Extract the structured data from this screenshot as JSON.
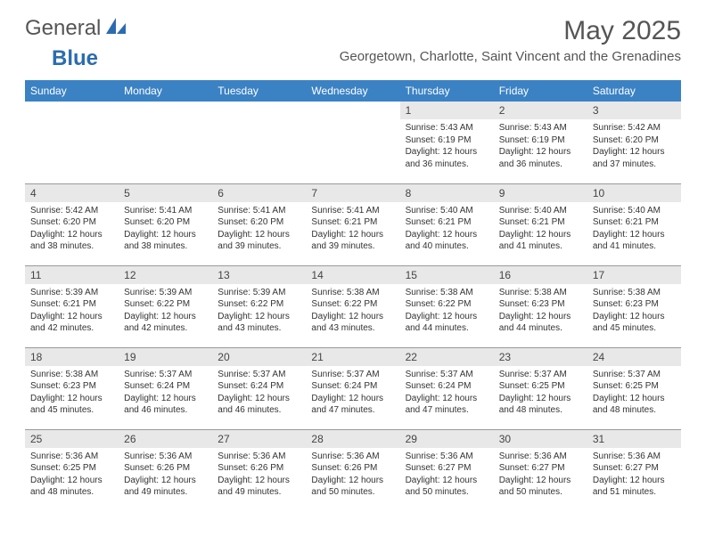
{
  "logo": {
    "text1": "General",
    "text2": "Blue"
  },
  "title": {
    "month": "May 2025",
    "location": "Georgetown, Charlotte, Saint Vincent and the Grenadines"
  },
  "colors": {
    "header_bg": "#3b82c4",
    "header_text": "#ffffff",
    "daynum_bg": "#e8e8e8",
    "border": "#999999",
    "title_text": "#555555",
    "logo_blue": "#2b6cb0"
  },
  "weekdays": [
    "Sunday",
    "Monday",
    "Tuesday",
    "Wednesday",
    "Thursday",
    "Friday",
    "Saturday"
  ],
  "first_weekday_index": 4,
  "days": [
    {
      "n": "1",
      "sunrise": "Sunrise: 5:43 AM",
      "sunset": "Sunset: 6:19 PM",
      "daylight": "Daylight: 12 hours and 36 minutes."
    },
    {
      "n": "2",
      "sunrise": "Sunrise: 5:43 AM",
      "sunset": "Sunset: 6:19 PM",
      "daylight": "Daylight: 12 hours and 36 minutes."
    },
    {
      "n": "3",
      "sunrise": "Sunrise: 5:42 AM",
      "sunset": "Sunset: 6:20 PM",
      "daylight": "Daylight: 12 hours and 37 minutes."
    },
    {
      "n": "4",
      "sunrise": "Sunrise: 5:42 AM",
      "sunset": "Sunset: 6:20 PM",
      "daylight": "Daylight: 12 hours and 38 minutes."
    },
    {
      "n": "5",
      "sunrise": "Sunrise: 5:41 AM",
      "sunset": "Sunset: 6:20 PM",
      "daylight": "Daylight: 12 hours and 38 minutes."
    },
    {
      "n": "6",
      "sunrise": "Sunrise: 5:41 AM",
      "sunset": "Sunset: 6:20 PM",
      "daylight": "Daylight: 12 hours and 39 minutes."
    },
    {
      "n": "7",
      "sunrise": "Sunrise: 5:41 AM",
      "sunset": "Sunset: 6:21 PM",
      "daylight": "Daylight: 12 hours and 39 minutes."
    },
    {
      "n": "8",
      "sunrise": "Sunrise: 5:40 AM",
      "sunset": "Sunset: 6:21 PM",
      "daylight": "Daylight: 12 hours and 40 minutes."
    },
    {
      "n": "9",
      "sunrise": "Sunrise: 5:40 AM",
      "sunset": "Sunset: 6:21 PM",
      "daylight": "Daylight: 12 hours and 41 minutes."
    },
    {
      "n": "10",
      "sunrise": "Sunrise: 5:40 AM",
      "sunset": "Sunset: 6:21 PM",
      "daylight": "Daylight: 12 hours and 41 minutes."
    },
    {
      "n": "11",
      "sunrise": "Sunrise: 5:39 AM",
      "sunset": "Sunset: 6:21 PM",
      "daylight": "Daylight: 12 hours and 42 minutes."
    },
    {
      "n": "12",
      "sunrise": "Sunrise: 5:39 AM",
      "sunset": "Sunset: 6:22 PM",
      "daylight": "Daylight: 12 hours and 42 minutes."
    },
    {
      "n": "13",
      "sunrise": "Sunrise: 5:39 AM",
      "sunset": "Sunset: 6:22 PM",
      "daylight": "Daylight: 12 hours and 43 minutes."
    },
    {
      "n": "14",
      "sunrise": "Sunrise: 5:38 AM",
      "sunset": "Sunset: 6:22 PM",
      "daylight": "Daylight: 12 hours and 43 minutes."
    },
    {
      "n": "15",
      "sunrise": "Sunrise: 5:38 AM",
      "sunset": "Sunset: 6:22 PM",
      "daylight": "Daylight: 12 hours and 44 minutes."
    },
    {
      "n": "16",
      "sunrise": "Sunrise: 5:38 AM",
      "sunset": "Sunset: 6:23 PM",
      "daylight": "Daylight: 12 hours and 44 minutes."
    },
    {
      "n": "17",
      "sunrise": "Sunrise: 5:38 AM",
      "sunset": "Sunset: 6:23 PM",
      "daylight": "Daylight: 12 hours and 45 minutes."
    },
    {
      "n": "18",
      "sunrise": "Sunrise: 5:38 AM",
      "sunset": "Sunset: 6:23 PM",
      "daylight": "Daylight: 12 hours and 45 minutes."
    },
    {
      "n": "19",
      "sunrise": "Sunrise: 5:37 AM",
      "sunset": "Sunset: 6:24 PM",
      "daylight": "Daylight: 12 hours and 46 minutes."
    },
    {
      "n": "20",
      "sunrise": "Sunrise: 5:37 AM",
      "sunset": "Sunset: 6:24 PM",
      "daylight": "Daylight: 12 hours and 46 minutes."
    },
    {
      "n": "21",
      "sunrise": "Sunrise: 5:37 AM",
      "sunset": "Sunset: 6:24 PM",
      "daylight": "Daylight: 12 hours and 47 minutes."
    },
    {
      "n": "22",
      "sunrise": "Sunrise: 5:37 AM",
      "sunset": "Sunset: 6:24 PM",
      "daylight": "Daylight: 12 hours and 47 minutes."
    },
    {
      "n": "23",
      "sunrise": "Sunrise: 5:37 AM",
      "sunset": "Sunset: 6:25 PM",
      "daylight": "Daylight: 12 hours and 48 minutes."
    },
    {
      "n": "24",
      "sunrise": "Sunrise: 5:37 AM",
      "sunset": "Sunset: 6:25 PM",
      "daylight": "Daylight: 12 hours and 48 minutes."
    },
    {
      "n": "25",
      "sunrise": "Sunrise: 5:36 AM",
      "sunset": "Sunset: 6:25 PM",
      "daylight": "Daylight: 12 hours and 48 minutes."
    },
    {
      "n": "26",
      "sunrise": "Sunrise: 5:36 AM",
      "sunset": "Sunset: 6:26 PM",
      "daylight": "Daylight: 12 hours and 49 minutes."
    },
    {
      "n": "27",
      "sunrise": "Sunrise: 5:36 AM",
      "sunset": "Sunset: 6:26 PM",
      "daylight": "Daylight: 12 hours and 49 minutes."
    },
    {
      "n": "28",
      "sunrise": "Sunrise: 5:36 AM",
      "sunset": "Sunset: 6:26 PM",
      "daylight": "Daylight: 12 hours and 50 minutes."
    },
    {
      "n": "29",
      "sunrise": "Sunrise: 5:36 AM",
      "sunset": "Sunset: 6:27 PM",
      "daylight": "Daylight: 12 hours and 50 minutes."
    },
    {
      "n": "30",
      "sunrise": "Sunrise: 5:36 AM",
      "sunset": "Sunset: 6:27 PM",
      "daylight": "Daylight: 12 hours and 50 minutes."
    },
    {
      "n": "31",
      "sunrise": "Sunrise: 5:36 AM",
      "sunset": "Sunset: 6:27 PM",
      "daylight": "Daylight: 12 hours and 51 minutes."
    }
  ]
}
